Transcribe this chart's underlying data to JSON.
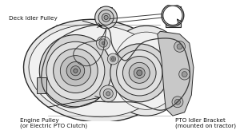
{
  "bg_color": "#f5f5f5",
  "labels": {
    "engine_pulley": "Engine Pulley\n(or Electric PTO Clutch)",
    "pto_bracket": "PTO Idler Bracket\n(mounted on tractor)",
    "deck_idler": "Deck Idler Pulley"
  },
  "label_pos": {
    "engine_pulley": [
      0.095,
      0.97
    ],
    "pto_bracket": [
      0.84,
      0.97
    ],
    "deck_idler": [
      0.04,
      0.095
    ]
  },
  "line_color": "#2a2a2a",
  "belt_color": "#3a3a3a",
  "fill_light": "#e0e0e0",
  "fill_mid": "#c8c8c8",
  "fill_dark": "#aaaaaa",
  "text_color": "#111111",
  "font_size": 5.2
}
